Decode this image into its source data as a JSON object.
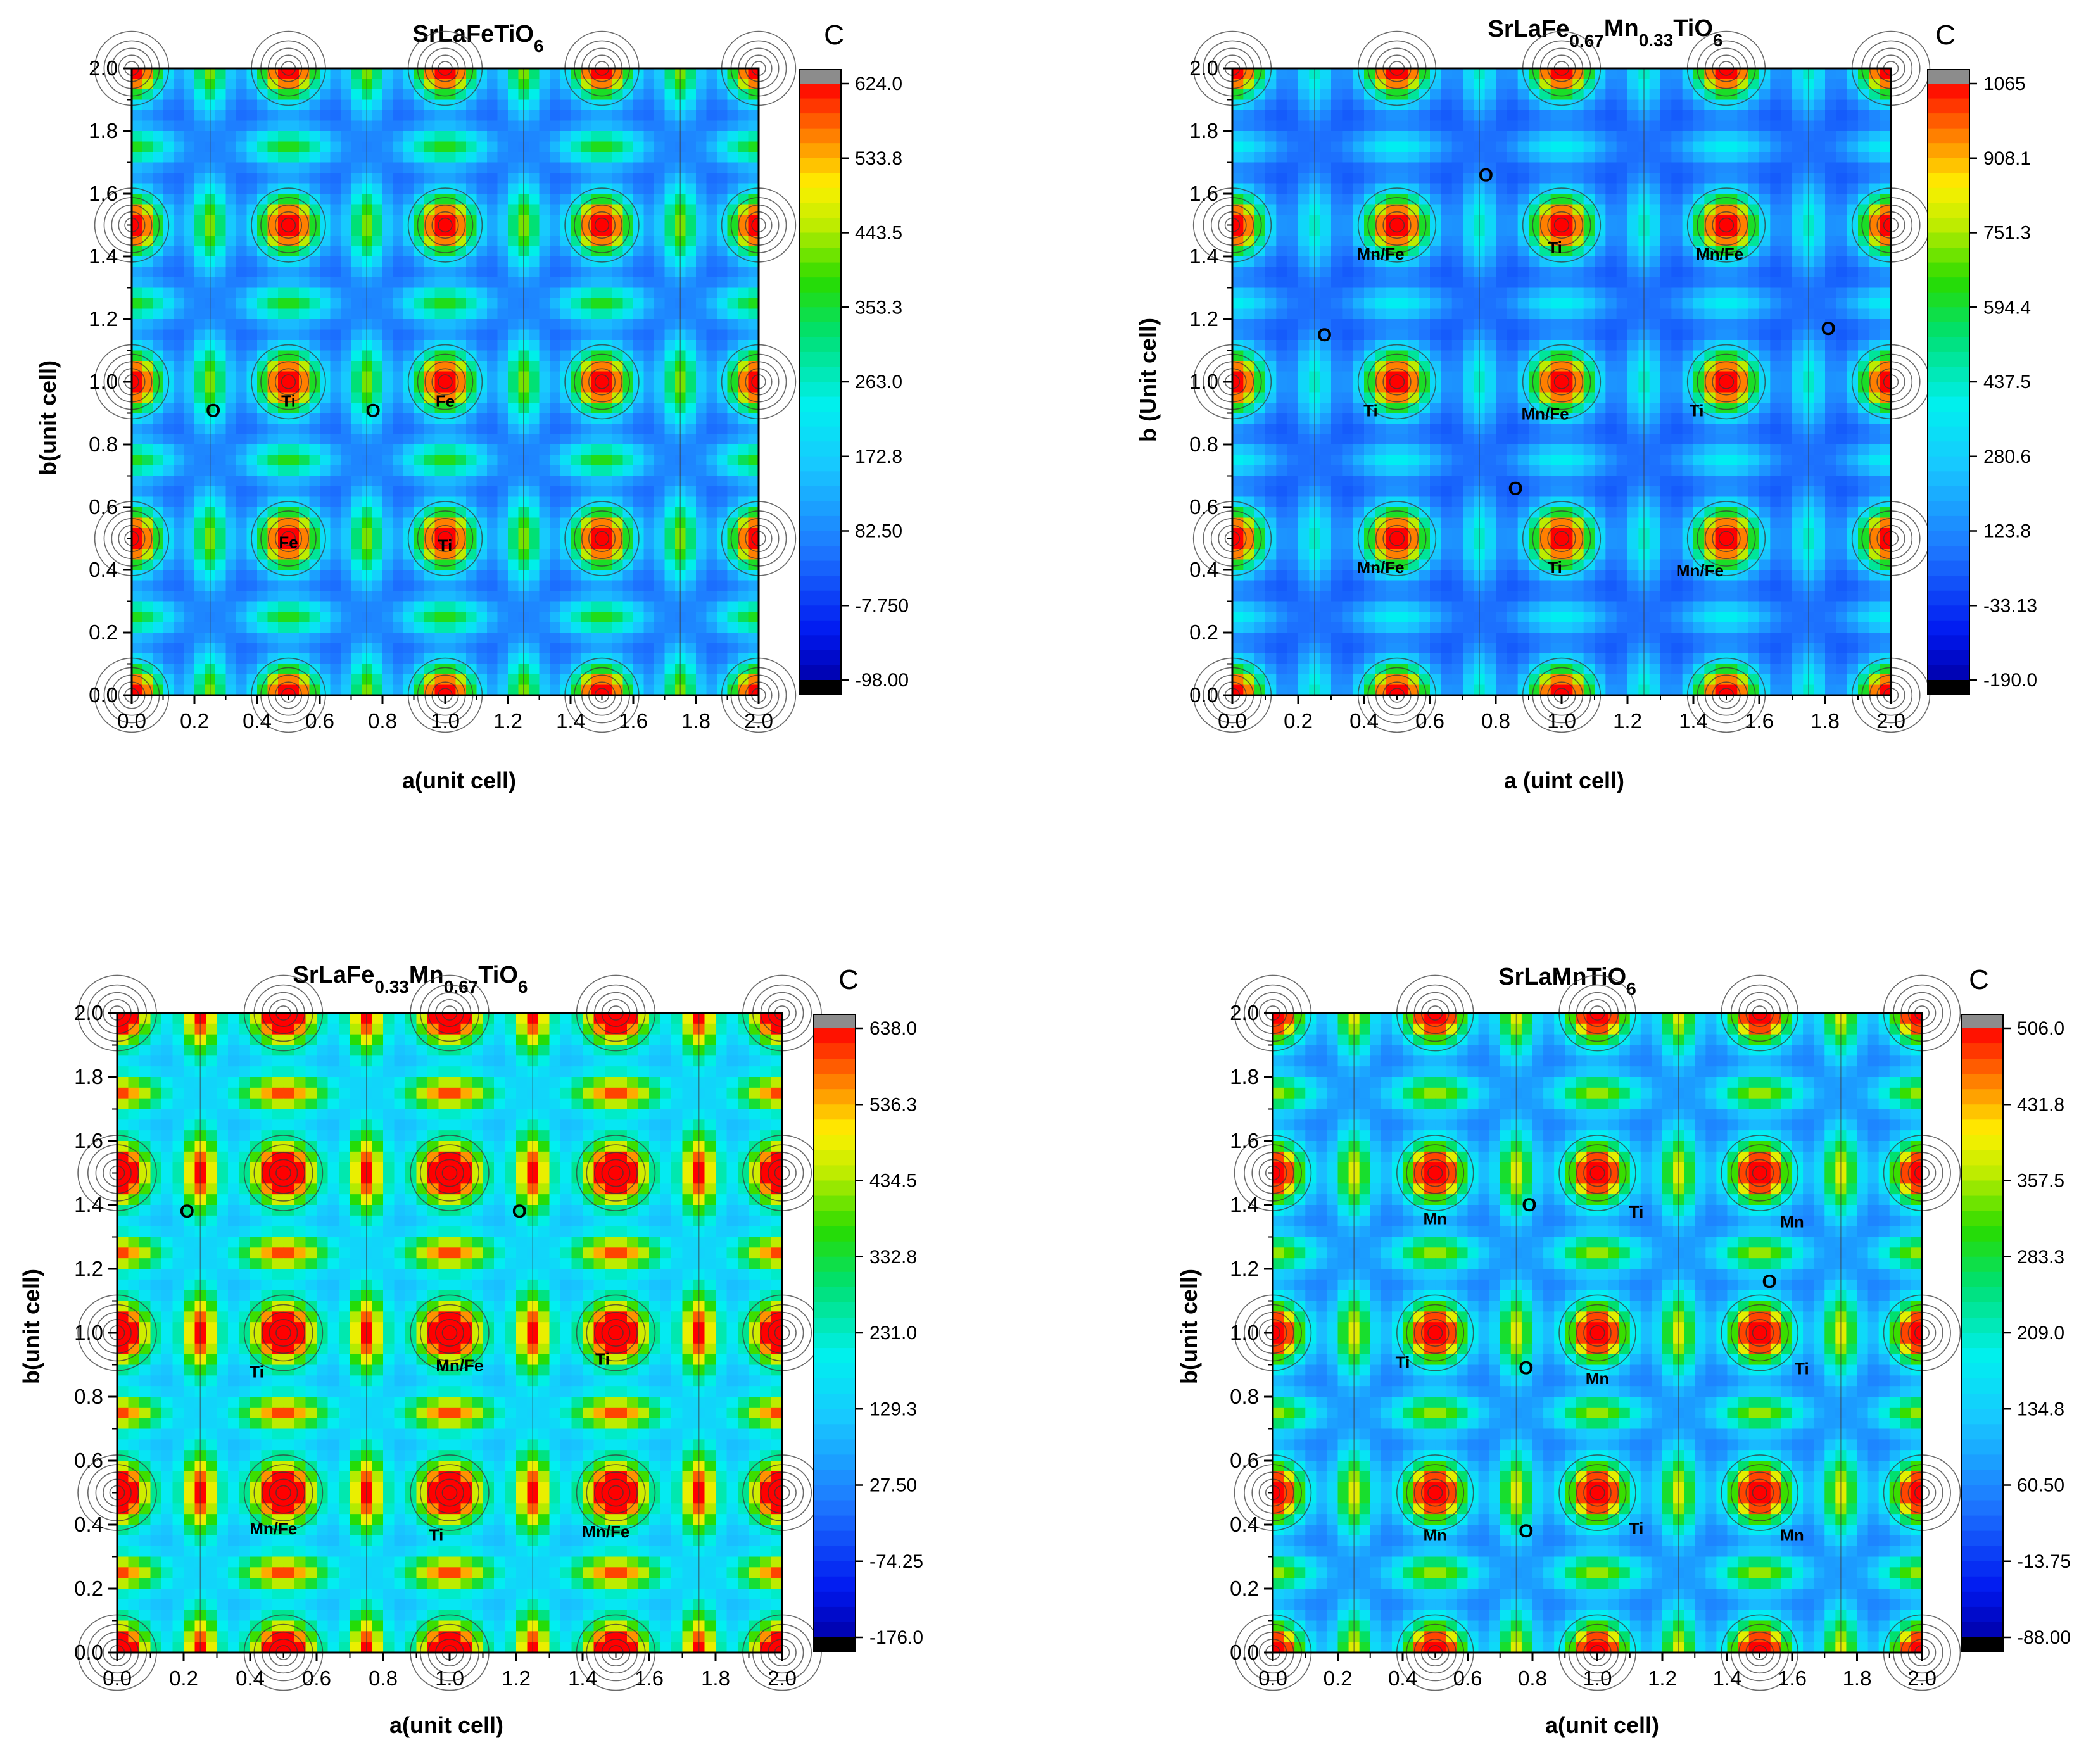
{
  "chart_data": [
    {
      "type": "heatmap",
      "title": {
        "pre": "SrLaFeTiO",
        "sub": "6"
      },
      "xlabel": "a(unit cell)",
      "ylabel": "b(unit cell)",
      "xlim": [
        0,
        2.0
      ],
      "ylim": [
        0,
        2.0
      ],
      "xticks": [
        "0.0",
        "0.2",
        "0.4",
        "0.6",
        "0.8",
        "1.0",
        "1.2",
        "1.4",
        "1.6",
        "1.8",
        "2.0"
      ],
      "yticks": [
        "0.0",
        "0.2",
        "0.4",
        "0.6",
        "0.8",
        "1.0",
        "1.2",
        "1.4",
        "1.6",
        "1.8",
        "2.0"
      ],
      "colorbar": {
        "title": "C",
        "min": -98.0,
        "max": 624.0,
        "ticks": [
          "624.0",
          "533.8",
          "443.5",
          "353.3",
          "263.0",
          "172.8",
          "82.50",
          "-7.750",
          "-98.00"
        ]
      },
      "field": {
        "peak_amp": 1.0,
        "ridge_amp": 0.34,
        "ridge_width": 0.05,
        "mid_amp": 0.22,
        "base": 0.16
      },
      "atom_labels": [
        {
          "text": "Ti",
          "x": 0.5,
          "y": 0.92
        },
        {
          "text": "Fe",
          "x": 1.0,
          "y": 0.92
        },
        {
          "text": "Fe",
          "x": 0.5,
          "y": 0.47
        },
        {
          "text": "Ti",
          "x": 1.0,
          "y": 0.46
        }
      ],
      "o_labels": [
        {
          "text": "O",
          "x": 0.26,
          "y": 0.92,
          "size": "large"
        },
        {
          "text": "O",
          "x": 0.77,
          "y": 0.92,
          "size": "large"
        }
      ]
    },
    {
      "type": "heatmap",
      "title": {
        "pre": "SrLaFe",
        "sub1": "0.67",
        "mid": "Mn",
        "sub2": "0.33",
        "post": "TiO",
        "sub3": "6"
      },
      "xlabel": "a (uint cell)",
      "ylabel": "b (Unit cell)",
      "xlim": [
        0,
        2.0
      ],
      "ylim": [
        0,
        2.0
      ],
      "xticks": [
        "0.0",
        "0.2",
        "0.4",
        "0.6",
        "0.8",
        "1.0",
        "1.2",
        "1.4",
        "1.6",
        "1.8",
        "2.0"
      ],
      "yticks": [
        "0.0",
        "0.2",
        "0.4",
        "0.6",
        "0.8",
        "1.0",
        "1.2",
        "1.4",
        "1.6",
        "1.8",
        "2.0"
      ],
      "colorbar": {
        "title": "C",
        "min": -190.0,
        "max": 1065.0,
        "ticks": [
          "1065",
          "908.1",
          "751.3",
          "594.4",
          "437.5",
          "280.6",
          "123.8",
          "-33.13",
          "-190.0"
        ]
      },
      "field": {
        "peak_amp": 1.0,
        "ridge_amp": 0.22,
        "ridge_width": 0.04,
        "mid_amp": 0.12,
        "base": 0.16
      },
      "atom_labels": [
        {
          "text": "Mn/Fe",
          "x": 0.45,
          "y": 1.39
        },
        {
          "text": "Ti",
          "x": 0.98,
          "y": 1.41
        },
        {
          "text": "Mn/Fe",
          "x": 1.48,
          "y": 1.39
        },
        {
          "text": "Ti",
          "x": 0.42,
          "y": 0.89
        },
        {
          "text": "Mn/Fe",
          "x": 0.95,
          "y": 0.88
        },
        {
          "text": "Ti",
          "x": 1.41,
          "y": 0.89
        },
        {
          "text": "Mn/Fe",
          "x": 0.45,
          "y": 0.39
        },
        {
          "text": "Ti",
          "x": 0.98,
          "y": 0.39
        },
        {
          "text": "Mn/Fe",
          "x": 1.42,
          "y": 0.38
        }
      ],
      "o_labels": [
        {
          "text": "O",
          "x": 0.77,
          "y": 1.66,
          "size": "small"
        },
        {
          "text": "O",
          "x": 0.28,
          "y": 1.15,
          "size": "small"
        },
        {
          "text": "O",
          "x": 1.81,
          "y": 1.17,
          "size": "small"
        },
        {
          "text": "O",
          "x": 0.86,
          "y": 0.66,
          "size": "small"
        }
      ]
    },
    {
      "type": "heatmap",
      "title": {
        "pre": "SrLaFe",
        "sub1": "0.33",
        "mid": "Mn",
        "sub2": "0.67",
        "post": "TiO",
        "sub3": "6"
      },
      "xlabel": "a(unit cell)",
      "ylabel": "b(unit cell)",
      "xlim": [
        0,
        2.0
      ],
      "ylim": [
        0,
        2.0
      ],
      "xticks": [
        "0.0",
        "0.2",
        "0.4",
        "0.6",
        "0.8",
        "1.0",
        "1.2",
        "1.4",
        "1.6",
        "1.8",
        "2.0"
      ],
      "yticks": [
        "0.0",
        "0.2",
        "0.4",
        "0.6",
        "0.8",
        "1.0",
        "1.2",
        "1.4",
        "1.6",
        "1.8",
        "2.0"
      ],
      "colorbar": {
        "title": "C",
        "min": -176.0,
        "max": 638.0,
        "ticks": [
          "638.0",
          "536.3",
          "434.5",
          "332.8",
          "231.0",
          "129.3",
          "27.50",
          "-74.25",
          "-176.0"
        ]
      },
      "field": {
        "peak_amp": 1.0,
        "ridge_amp": 0.3,
        "ridge_width": 0.05,
        "mid_amp": 0.42,
        "base": 0.3
      },
      "atom_labels": [
        {
          "text": "Ti",
          "x": 0.42,
          "y": 0.86
        },
        {
          "text": "Mn/Fe",
          "x": 1.03,
          "y": 0.88
        },
        {
          "text": "Ti",
          "x": 1.46,
          "y": 0.9
        },
        {
          "text": "Mn/Fe",
          "x": 0.47,
          "y": 0.37
        },
        {
          "text": "Ti",
          "x": 0.96,
          "y": 0.35
        },
        {
          "text": "Mn/Fe",
          "x": 1.47,
          "y": 0.36
        }
      ],
      "o_labels": [
        {
          "text": "O",
          "x": 0.21,
          "y": 1.38,
          "size": "small"
        },
        {
          "text": "O",
          "x": 1.21,
          "y": 1.38,
          "size": "small"
        }
      ]
    },
    {
      "type": "heatmap",
      "title": {
        "pre": "SrLaMnTiO",
        "sub": "6"
      },
      "xlabel": "a(unit cell)",
      "ylabel": "b(unit cell)",
      "xlim": [
        0,
        2.0
      ],
      "ylim": [
        0,
        2.0
      ],
      "xticks": [
        "0.0",
        "0.2",
        "0.4",
        "0.6",
        "0.8",
        "1.0",
        "1.2",
        "1.4",
        "1.6",
        "1.8",
        "2.0"
      ],
      "yticks": [
        "0.0",
        "0.2",
        "0.4",
        "0.6",
        "0.8",
        "1.0",
        "1.2",
        "1.4",
        "1.6",
        "1.8",
        "2.0"
      ],
      "colorbar": {
        "title": "C",
        "min": -88.0,
        "max": 506.0,
        "ticks": [
          "506.0",
          "431.8",
          "357.5",
          "283.3",
          "209.0",
          "134.8",
          "60.50",
          "-13.75",
          "-88.00"
        ]
      },
      "field": {
        "peak_amp": 1.0,
        "ridge_amp": 0.3,
        "ridge_width": 0.05,
        "mid_amp": 0.3,
        "base": 0.2
      },
      "atom_labels": [
        {
          "text": "Mn",
          "x": 0.5,
          "y": 1.34
        },
        {
          "text": "Ti",
          "x": 1.12,
          "y": 1.36
        },
        {
          "text": "Mn",
          "x": 1.6,
          "y": 1.33
        },
        {
          "text": "Ti",
          "x": 0.4,
          "y": 0.89
        },
        {
          "text": "Mn",
          "x": 1.0,
          "y": 0.84
        },
        {
          "text": "Ti",
          "x": 1.63,
          "y": 0.87
        },
        {
          "text": "Mn",
          "x": 0.5,
          "y": 0.35
        },
        {
          "text": "Ti",
          "x": 1.12,
          "y": 0.37
        },
        {
          "text": "Mn",
          "x": 1.6,
          "y": 0.35
        }
      ],
      "o_labels": [
        {
          "text": "O",
          "x": 0.79,
          "y": 1.4,
          "size": "small"
        },
        {
          "text": "O",
          "x": 1.53,
          "y": 1.16,
          "size": "small"
        },
        {
          "text": "O",
          "x": 0.78,
          "y": 0.89,
          "size": "small"
        },
        {
          "text": "O",
          "x": 0.78,
          "y": 0.38,
          "size": "small"
        }
      ]
    }
  ]
}
